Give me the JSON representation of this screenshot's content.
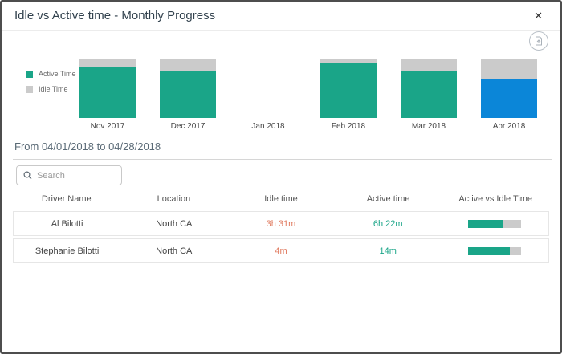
{
  "dialog": {
    "title": "Idle vs Active time - Monthly Progress",
    "close_glyph": "✕"
  },
  "colors": {
    "active": "#1AA588",
    "idle": "#CBCBCB",
    "selected": "#0B86D8",
    "idle_text": "#E07A5F",
    "active_text": "#1AA588"
  },
  "chart_data": {
    "type": "bar",
    "stacked": true,
    "unit": "percent",
    "categories": [
      "Nov 2017",
      "Dec 2017",
      "Jan 2018",
      "Feb 2018",
      "Mar 2018",
      "Apr 2018"
    ],
    "series": [
      {
        "name": "Active Time",
        "values": [
          85,
          80,
          0,
          92,
          80,
          65
        ]
      },
      {
        "name": "Idle Time",
        "values": [
          15,
          20,
          0,
          8,
          20,
          35
        ]
      }
    ],
    "highlighted_category": "Apr 2018",
    "legend_position": "left",
    "ylim": [
      0,
      100
    ],
    "title": "Idle vs Active time - Monthly Progress"
  },
  "legend": {
    "items": [
      {
        "label": "Active Time",
        "color": "#1AA588"
      },
      {
        "label": "Idle Time",
        "color": "#CBCBCB"
      }
    ]
  },
  "period": {
    "label": "From 04/01/2018 to 04/28/2018"
  },
  "search": {
    "placeholder": "Search"
  },
  "table": {
    "headers": [
      "Driver Name",
      "Location",
      "Idle time",
      "Active time",
      "Active vs Idle Time"
    ],
    "rows": [
      {
        "driver": "Al Bilotti",
        "location": "North CA",
        "idle": "3h 31m",
        "active": "6h 22m",
        "active_pct": 64
      },
      {
        "driver": "Stephanie Bilotti",
        "location": "North CA",
        "idle": "4m",
        "active": "14m",
        "active_pct": 78
      }
    ]
  }
}
